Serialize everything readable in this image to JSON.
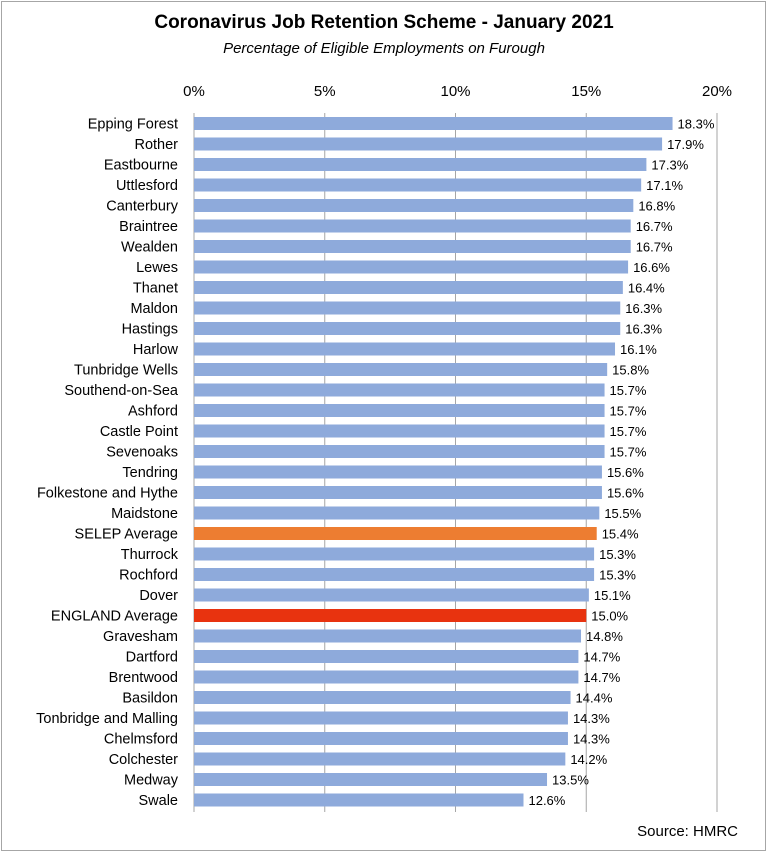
{
  "chart_data": {
    "type": "bar",
    "orientation": "horizontal",
    "title": "Coronavirus Job Retention Scheme - January 2021",
    "subtitle": "Percentage of Eligible Employments on Furough",
    "source": "Source: HMRC",
    "xlim": [
      0,
      20
    ],
    "xticks": [
      0,
      5,
      10,
      15,
      20
    ],
    "xtick_labels": [
      "0%",
      "5%",
      "10%",
      "15%",
      "20%"
    ],
    "gridlines": "vertical",
    "legend": "none",
    "categories": [
      "Epping Forest",
      "Rother",
      "Eastbourne",
      "Uttlesford",
      "Canterbury",
      "Braintree",
      "Wealden",
      "Lewes",
      "Thanet",
      "Maldon",
      "Hastings",
      "Harlow",
      "Tunbridge Wells",
      "Southend-on-Sea",
      "Ashford",
      "Castle Point",
      "Sevenoaks",
      "Tendring",
      "Folkestone and Hythe",
      "Maidstone",
      "SELEP Average",
      "Thurrock",
      "Rochford",
      "Dover",
      "ENGLAND Average",
      "Gravesham",
      "Dartford",
      "Brentwood",
      "Basildon",
      "Tonbridge and Malling",
      "Chelmsford",
      "Colchester",
      "Medway",
      "Swale"
    ],
    "values": [
      18.3,
      17.9,
      17.3,
      17.1,
      16.8,
      16.7,
      16.7,
      16.6,
      16.4,
      16.3,
      16.3,
      16.1,
      15.8,
      15.7,
      15.7,
      15.7,
      15.7,
      15.6,
      15.6,
      15.5,
      15.4,
      15.3,
      15.3,
      15.1,
      15.0,
      14.8,
      14.7,
      14.7,
      14.4,
      14.3,
      14.3,
      14.2,
      13.5,
      12.6
    ],
    "value_labels": [
      "18.3%",
      "17.9%",
      "17.3%",
      "17.1%",
      "16.8%",
      "16.7%",
      "16.7%",
      "16.6%",
      "16.4%",
      "16.3%",
      "16.3%",
      "16.1%",
      "15.8%",
      "15.7%",
      "15.7%",
      "15.7%",
      "15.7%",
      "15.6%",
      "15.6%",
      "15.5%",
      "15.4%",
      "15.3%",
      "15.3%",
      "15.1%",
      "15.0%",
      "14.8%",
      "14.7%",
      "14.7%",
      "14.4%",
      "14.3%",
      "14.3%",
      "14.2%",
      "13.5%",
      "12.6%"
    ],
    "colors": {
      "default": "#8eaadb",
      "SELEP Average": "#ed7d31",
      "ENGLAND Average": "#e8330f",
      "gridline": "#a6a6a6"
    }
  }
}
